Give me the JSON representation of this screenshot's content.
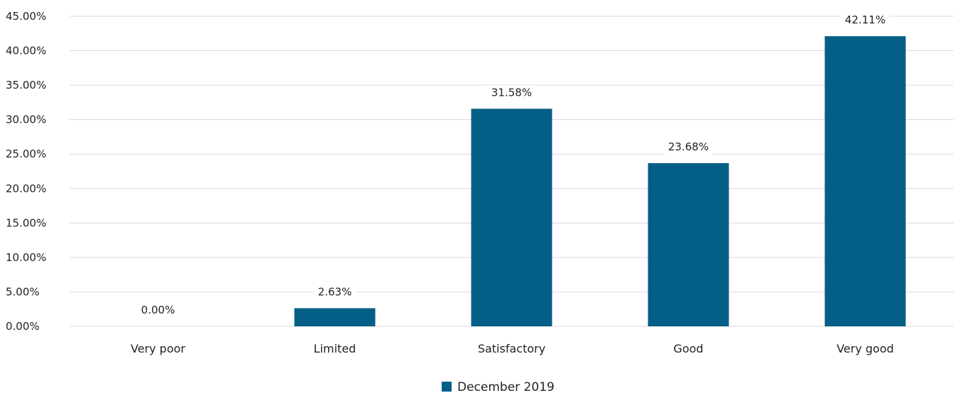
{
  "chart_data": {
    "type": "bar",
    "categories": [
      "Very poor",
      "Limited",
      "Satisfactory",
      "Good",
      "Very good"
    ],
    "series": [
      {
        "name": "December 2019",
        "values": [
          0.0,
          2.63,
          31.58,
          23.68,
          42.11
        ]
      }
    ],
    "data_labels": [
      "0.00%",
      "2.63%",
      "31.58%",
      "23.68%",
      "42.11%"
    ],
    "y_tick_labels": [
      "0.00%",
      "5.00%",
      "10.00%",
      "15.00%",
      "20.00%",
      "25.00%",
      "30.00%",
      "35.00%",
      "40.00%",
      "45.00%"
    ],
    "ylim": [
      0,
      45
    ],
    "y_step": 5,
    "grid": true,
    "legend": "bottom-center",
    "bar_color": "#035F87",
    "grid_color": "#D9D9D9",
    "title": "",
    "xlabel": "",
    "ylabel": ""
  }
}
